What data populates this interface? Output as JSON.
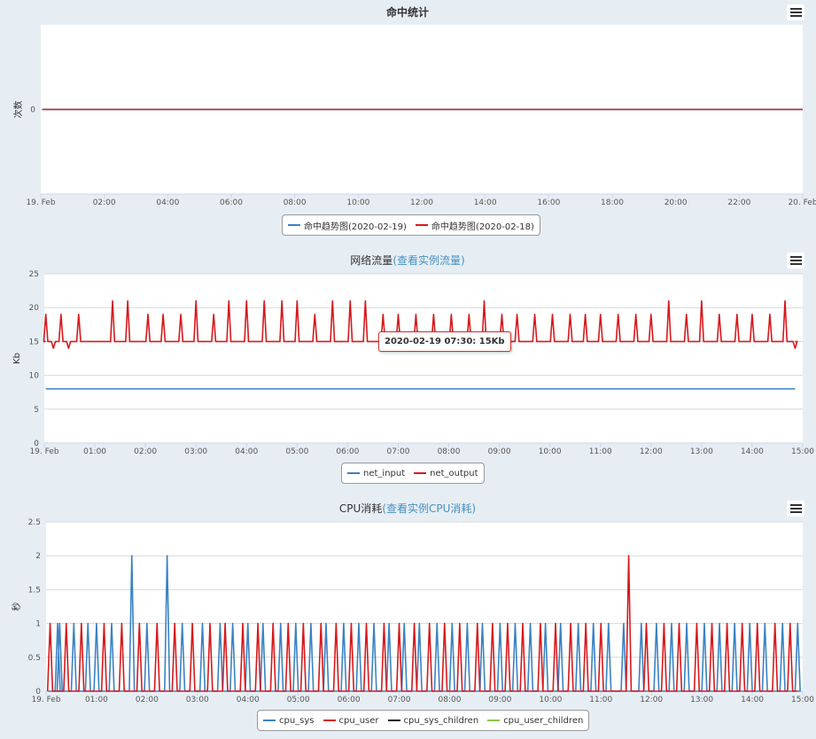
{
  "colors": {
    "blue": "#3b82c4",
    "red": "#d7191c",
    "black": "#1a1a1a",
    "green": "#8bc34a",
    "title_link": "#4a90c2"
  },
  "menu_icon": "hamburger-menu-icon",
  "chart_data": [
    {
      "type": "line",
      "title": "命中统计",
      "title_link": "",
      "ylabel": "次数",
      "y_ticks": [
        "0"
      ],
      "x_ticks": [
        "19. Feb",
        "02:00",
        "04:00",
        "06:00",
        "08:00",
        "10:00",
        "12:00",
        "14:00",
        "16:00",
        "18:00",
        "20:00",
        "22:00",
        "20. Feb"
      ],
      "xlim_hours": [
        0,
        24
      ],
      "ylim": [
        -1,
        1
      ],
      "grid": true,
      "legend_position": "bottom-center",
      "series": [
        {
          "name": "命中趋势图(2020-02-19)",
          "color": "#3b82c4",
          "x": [
            0.05,
            24
          ],
          "values": [
            0,
            0
          ]
        },
        {
          "name": "命中趋势图(2020-02-18)",
          "color": "#d7191c",
          "x": [
            0.05,
            24
          ],
          "values": [
            0,
            0
          ]
        }
      ]
    },
    {
      "type": "line",
      "title": "网络流量",
      "title_link": "(查看实例流量)",
      "ylabel": "Kb",
      "y_ticks": [
        "0",
        "5",
        "10",
        "15",
        "20",
        "25"
      ],
      "x_ticks": [
        "19. Feb",
        "01:00",
        "02:00",
        "03:00",
        "04:00",
        "05:00",
        "06:00",
        "07:00",
        "08:00",
        "09:00",
        "10:00",
        "11:00",
        "12:00",
        "13:00",
        "14:00",
        "15:00"
      ],
      "xlim_hours": [
        0,
        15
      ],
      "ylim": [
        0,
        25
      ],
      "grid": true,
      "legend_position": "bottom-center",
      "tooltip": "2020-02-19 07:30: 15Kb",
      "series": [
        {
          "name": "net_input",
          "color": "#3b82c4",
          "baseline": 8,
          "spikes": []
        },
        {
          "name": "net_output",
          "color": "#d7191c",
          "baseline": 15,
          "spikes": [
            [
              0.03,
              19
            ],
            [
              0.18,
              14
            ],
            [
              0.33,
              19
            ],
            [
              0.48,
              14
            ],
            [
              0.68,
              19
            ],
            [
              1.35,
              21
            ],
            [
              1.65,
              21
            ],
            [
              2.05,
              19
            ],
            [
              2.35,
              19
            ],
            [
              2.7,
              19
            ],
            [
              3.0,
              21
            ],
            [
              3.35,
              19
            ],
            [
              3.65,
              21
            ],
            [
              4.0,
              21
            ],
            [
              4.35,
              21
            ],
            [
              4.7,
              21
            ],
            [
              5.0,
              21
            ],
            [
              5.35,
              19
            ],
            [
              5.7,
              21
            ],
            [
              6.05,
              21
            ],
            [
              6.35,
              21
            ],
            [
              6.7,
              19
            ],
            [
              7.0,
              19
            ],
            [
              7.35,
              19
            ],
            [
              7.7,
              19
            ],
            [
              8.05,
              19
            ],
            [
              8.4,
              19
            ],
            [
              8.7,
              21
            ],
            [
              9.05,
              19
            ],
            [
              9.35,
              19
            ],
            [
              9.7,
              19
            ],
            [
              10.05,
              19
            ],
            [
              10.4,
              19
            ],
            [
              10.7,
              19
            ],
            [
              11.0,
              19
            ],
            [
              11.35,
              19
            ],
            [
              11.7,
              19
            ],
            [
              12.0,
              19
            ],
            [
              12.35,
              21
            ],
            [
              12.7,
              19
            ],
            [
              13.0,
              21
            ],
            [
              13.35,
              19
            ],
            [
              13.7,
              19
            ],
            [
              14.0,
              19
            ],
            [
              14.35,
              19
            ],
            [
              14.65,
              21
            ],
            [
              14.85,
              14
            ]
          ]
        }
      ]
    },
    {
      "type": "line",
      "title": "CPU消耗",
      "title_link": "(查看实例CPU消耗)",
      "ylabel": "秒",
      "y_ticks": [
        "0",
        "0.5",
        "1",
        "1.5",
        "2",
        "2.5"
      ],
      "x_ticks": [
        "19. Feb",
        "01:00",
        "02:00",
        "03:00",
        "04:00",
        "05:00",
        "06:00",
        "07:00",
        "08:00",
        "09:00",
        "10:00",
        "11:00",
        "12:00",
        "13:00",
        "14:00",
        "15:00"
      ],
      "xlim_hours": [
        0,
        15
      ],
      "ylim": [
        0,
        2.5
      ],
      "grid": true,
      "legend_position": "bottom-center",
      "series": [
        {
          "name": "cpu_sys",
          "color": "#3b82c4",
          "spikes": [
            [
              0.23,
              1
            ],
            [
              0.27,
              1
            ],
            [
              0.55,
              1
            ],
            [
              0.83,
              1
            ],
            [
              1.0,
              1
            ],
            [
              1.3,
              1
            ],
            [
              1.7,
              2
            ],
            [
              2.0,
              1
            ],
            [
              2.4,
              2
            ],
            [
              2.7,
              1
            ],
            [
              3.1,
              1
            ],
            [
              3.45,
              1
            ],
            [
              3.7,
              1
            ],
            [
              4.0,
              1
            ],
            [
              4.3,
              1
            ],
            [
              4.65,
              1
            ],
            [
              4.95,
              1
            ],
            [
              5.25,
              1
            ],
            [
              5.55,
              1
            ],
            [
              5.9,
              1
            ],
            [
              6.2,
              1
            ],
            [
              6.5,
              1
            ],
            [
              6.8,
              1
            ],
            [
              7.1,
              1
            ],
            [
              7.4,
              1
            ],
            [
              7.75,
              1
            ],
            [
              8.05,
              1
            ],
            [
              8.35,
              1
            ],
            [
              8.65,
              1
            ],
            [
              9.0,
              1
            ],
            [
              9.3,
              1
            ],
            [
              9.6,
              1
            ],
            [
              9.9,
              1
            ],
            [
              10.2,
              1
            ],
            [
              10.55,
              1
            ],
            [
              10.85,
              1
            ],
            [
              11.15,
              1
            ],
            [
              11.45,
              1
            ],
            [
              11.8,
              1
            ],
            [
              12.1,
              1
            ],
            [
              12.4,
              1
            ],
            [
              12.7,
              1
            ],
            [
              13.05,
              1
            ],
            [
              13.35,
              1
            ],
            [
              13.65,
              1
            ],
            [
              13.95,
              1
            ],
            [
              14.25,
              1
            ],
            [
              14.6,
              1
            ],
            [
              14.9,
              1
            ]
          ]
        },
        {
          "name": "cpu_user",
          "color": "#d7191c",
          "spikes": [
            [
              0.08,
              1
            ],
            [
              0.4,
              1
            ],
            [
              0.7,
              1
            ],
            [
              1.15,
              1
            ],
            [
              1.5,
              1
            ],
            [
              1.85,
              1
            ],
            [
              2.2,
              1
            ],
            [
              2.55,
              1
            ],
            [
              2.9,
              1
            ],
            [
              3.25,
              1
            ],
            [
              3.55,
              1
            ],
            [
              3.9,
              1
            ],
            [
              4.2,
              1
            ],
            [
              4.5,
              1
            ],
            [
              4.8,
              1
            ],
            [
              5.1,
              1
            ],
            [
              5.45,
              1
            ],
            [
              5.75,
              1
            ],
            [
              6.05,
              1
            ],
            [
              6.35,
              1
            ],
            [
              6.7,
              1
            ],
            [
              7.0,
              1
            ],
            [
              7.3,
              1
            ],
            [
              7.6,
              1
            ],
            [
              7.9,
              1
            ],
            [
              8.2,
              1
            ],
            [
              8.55,
              1
            ],
            [
              8.85,
              1
            ],
            [
              9.15,
              1
            ],
            [
              9.45,
              1
            ],
            [
              9.8,
              1
            ],
            [
              10.1,
              1
            ],
            [
              10.4,
              1
            ],
            [
              10.7,
              1
            ],
            [
              11.0,
              1
            ],
            [
              11.55,
              2
            ],
            [
              11.9,
              1
            ],
            [
              12.25,
              1
            ],
            [
              12.55,
              1
            ],
            [
              12.9,
              1
            ],
            [
              13.2,
              1
            ],
            [
              13.5,
              1
            ],
            [
              13.8,
              1
            ],
            [
              14.1,
              1
            ],
            [
              14.45,
              1
            ],
            [
              14.75,
              1
            ]
          ]
        },
        {
          "name": "cpu_sys_children",
          "color": "#1a1a1a",
          "spikes": []
        },
        {
          "name": "cpu_user_children",
          "color": "#8bc34a",
          "spikes": []
        }
      ]
    }
  ]
}
